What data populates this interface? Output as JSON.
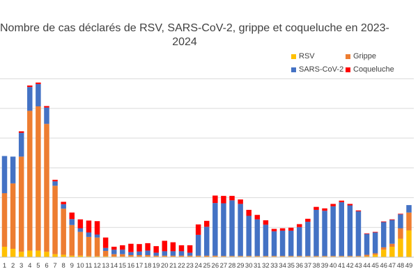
{
  "chart_data": {
    "type": "bar",
    "stacked": true,
    "title": "Nombre de cas déclarés de RSV, SARS-CoV-2, grippe et coqueluche en 2023-2024",
    "title_lines": [
      "Nombre de cas déclarés de RSV, SARS-CoV-2, grippe et coqueluche en 2023-",
      "2024"
    ],
    "xlabel": "",
    "ylabel": "",
    "ylim": [
      0,
      610
    ],
    "grid": true,
    "legend_position": "top-right",
    "categories": [
      "1",
      "2",
      "3",
      "4",
      "5",
      "6",
      "7",
      "8",
      "9",
      "10",
      "11",
      "12",
      "13",
      "14",
      "15",
      "16",
      "17",
      "18",
      "19",
      "20",
      "21",
      "22",
      "23",
      "24",
      "25",
      "26",
      "27",
      "28",
      "29",
      "30",
      "31",
      "32",
      "33",
      "34",
      "35",
      "36",
      "37",
      "38",
      "39",
      "40",
      "41",
      "42",
      "43",
      "44",
      "45",
      "46",
      "47",
      "48",
      "49"
    ],
    "series": [
      {
        "name": "RSV",
        "color": "#FFC000",
        "values": [
          35,
          28,
          18,
          22,
          22,
          18,
          10,
          8,
          5,
          5,
          3,
          3,
          3,
          2,
          2,
          2,
          2,
          2,
          2,
          2,
          2,
          2,
          2,
          2,
          2,
          2,
          2,
          2,
          2,
          2,
          2,
          2,
          2,
          2,
          2,
          2,
          2,
          2,
          2,
          2,
          2,
          2,
          2,
          3,
          8,
          25,
          35,
          62,
          90
        ]
      },
      {
        "name": "Grippe",
        "color": "#ED7D31",
        "values": [
          180,
          220,
          320,
          470,
          485,
          430,
          230,
          155,
          103,
          80,
          65,
          63,
          18,
          8,
          8,
          5,
          5,
          5,
          3,
          3,
          3,
          3,
          3,
          3,
          3,
          3,
          2,
          2,
          2,
          2,
          2,
          2,
          2,
          2,
          2,
          2,
          2,
          2,
          2,
          2,
          2,
          2,
          2,
          5,
          5,
          8,
          10,
          35,
          60
        ]
      },
      {
        "name": "SARS-CoV-2",
        "color": "#4472C4",
        "values": [
          125,
          90,
          80,
          80,
          75,
          55,
          15,
          15,
          20,
          12,
          15,
          10,
          10,
          15,
          15,
          10,
          12,
          15,
          10,
          15,
          15,
          15,
          10,
          70,
          97,
          177,
          177,
          187,
          175,
          135,
          123,
          105,
          83,
          85,
          85,
          97,
          115,
          155,
          152,
          167,
          181,
          170,
          150,
          70,
          70,
          85,
          80,
          47,
          25
        ]
      },
      {
        "name": "Coqueluche",
        "color": "#FF0000",
        "values": [
          0,
          0,
          5,
          5,
          5,
          5,
          5,
          8,
          22,
          30,
          40,
          45,
          35,
          10,
          15,
          28,
          25,
          25,
          22,
          35,
          30,
          20,
          25,
          35,
          20,
          25,
          25,
          15,
          15,
          20,
          15,
          15,
          8,
          8,
          10,
          10,
          10,
          10,
          8,
          8,
          5,
          5,
          3,
          2,
          2,
          2,
          2,
          2,
          0
        ]
      }
    ]
  }
}
